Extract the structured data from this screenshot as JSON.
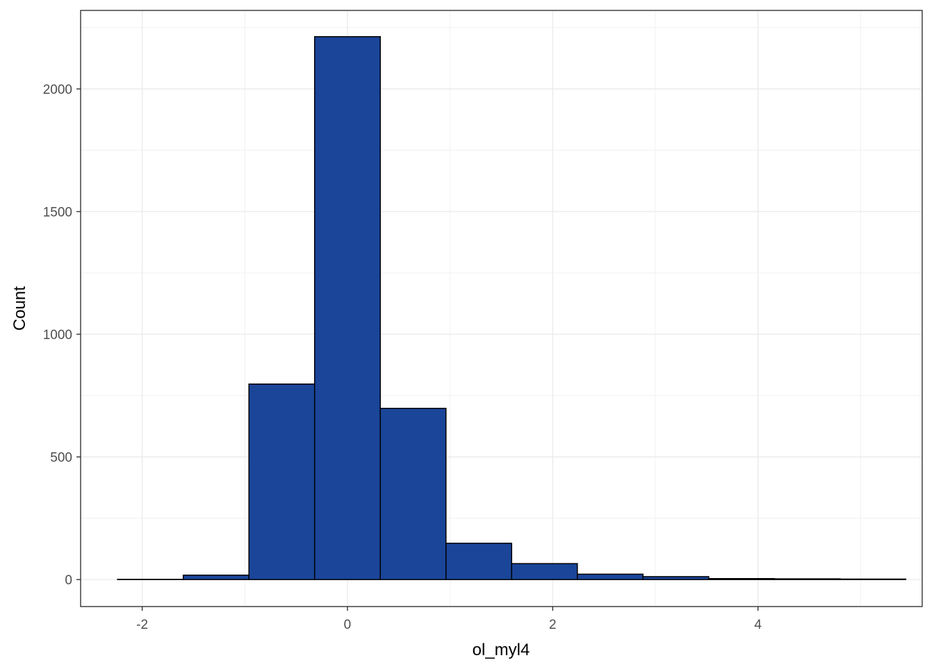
{
  "chart_data": {
    "type": "bar",
    "subtype": "histogram",
    "title": "",
    "xlabel": "ol_myl4",
    "ylabel": "Count",
    "xlim": [
      -2.6,
      5.6
    ],
    "ylim": [
      -110,
      2320
    ],
    "xticks": [
      -2,
      0,
      2,
      4
    ],
    "xtick_labels": [
      "-2",
      "0",
      "2",
      "4"
    ],
    "yticks": [
      0,
      500,
      1000,
      1500,
      2000
    ],
    "ytick_labels": [
      "0",
      "500",
      "1000",
      "1500",
      "2000"
    ],
    "x_minor_gridlines": [
      -1,
      1,
      3,
      5
    ],
    "y_minor_gridlines": [
      250,
      750,
      1250,
      1750,
      2250
    ],
    "grid": true,
    "theme": "bw",
    "bin_edges": [
      -2.24,
      -1.6,
      -0.96,
      -0.32,
      0.32,
      0.96,
      1.6,
      2.24,
      2.88,
      3.52,
      4.16,
      4.8,
      5.44
    ],
    "values": [
      1,
      18,
      797,
      2213,
      698,
      148,
      65,
      22,
      12,
      4,
      3,
      2
    ],
    "colors": {
      "bar_fill": "#1A4599",
      "bar_outline": "#000000",
      "panel_border": "#333333",
      "major_grid": "#EBEBEB",
      "minor_grid": "#F3F3F3",
      "tick_text": "#4D4D4D",
      "axis_title": "#000000"
    }
  }
}
